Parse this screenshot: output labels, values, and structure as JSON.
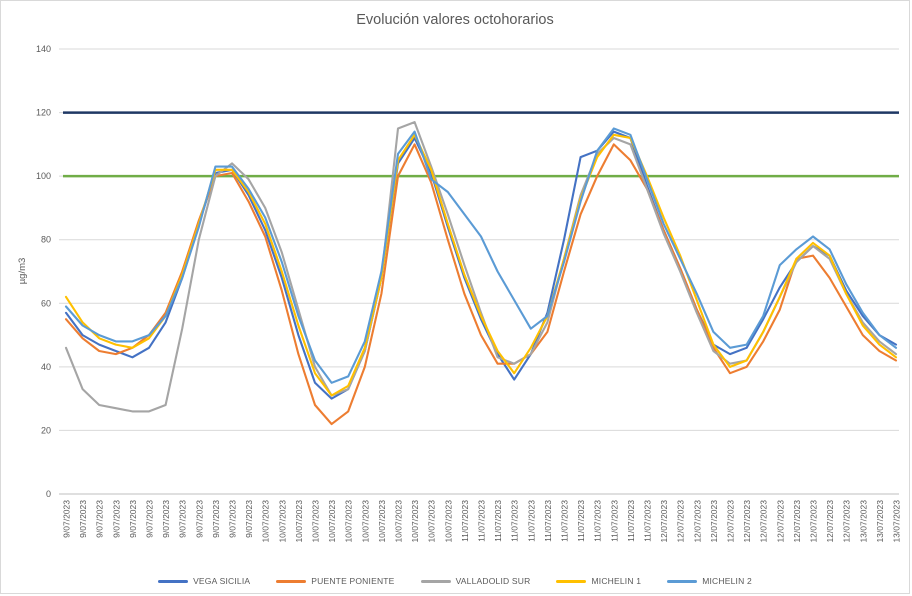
{
  "chart_data": {
    "type": "line",
    "title": "Evolución valores octohorarios",
    "xlabel": "",
    "ylabel": "µg/m3",
    "ylim": [
      0,
      140
    ],
    "yticks": [
      0,
      20,
      40,
      60,
      80,
      100,
      120,
      140
    ],
    "grid": true,
    "legend_position": "bottom",
    "categories": [
      "9/07/2023",
      "9/07/2023",
      "9/07/2023",
      "9/07/2023",
      "9/07/2023",
      "9/07/2023",
      "9/07/2023",
      "9/07/2023",
      "9/07/2023",
      "9/07/2023",
      "9/07/2023",
      "9/07/2023",
      "10/07/2023",
      "10/07/2023",
      "10/07/2023",
      "10/07/2023",
      "10/07/2023",
      "10/07/2023",
      "10/07/2023",
      "10/07/2023",
      "10/07/2023",
      "10/07/2023",
      "10/07/2023",
      "10/07/2023",
      "11/07/2023",
      "11/07/2023",
      "11/07/2023",
      "11/07/2023",
      "11/07/2023",
      "11/07/2023",
      "11/07/2023",
      "11/07/2023",
      "11/07/2023",
      "11/07/2023",
      "11/07/2023",
      "11/07/2023",
      "12/07/2023",
      "12/07/2023",
      "12/07/2023",
      "12/07/2023",
      "12/07/2023",
      "12/07/2023",
      "12/07/2023",
      "12/07/2023",
      "12/07/2023",
      "12/07/2023",
      "12/07/2023",
      "12/07/2023",
      "13/07/2023",
      "13/07/2023",
      "13/07/2023"
    ],
    "series": [
      {
        "name": "VEGA SICILIA",
        "color": "#4472C4",
        "values": [
          57,
          50,
          47,
          45,
          43,
          46,
          54,
          68,
          85,
          101,
          102,
          94,
          83,
          68,
          50,
          35,
          30,
          33,
          45,
          68,
          104,
          112,
          101,
          84,
          68,
          55,
          44,
          36,
          44,
          57,
          80,
          106,
          108,
          114,
          112,
          97,
          83,
          71,
          58,
          47,
          44,
          46,
          55,
          65,
          73,
          78,
          75,
          64,
          56,
          50,
          47
        ]
      },
      {
        "name": "PUENTE PONIENTE",
        "color": "#ED7D31",
        "values": [
          55,
          49,
          45,
          44,
          46,
          50,
          57,
          70,
          86,
          100,
          101,
          92,
          81,
          64,
          44,
          28,
          22,
          26,
          40,
          63,
          100,
          110,
          98,
          80,
          63,
          50,
          41,
          41,
          44,
          51,
          70,
          88,
          100,
          110,
          105,
          96,
          83,
          71,
          58,
          46,
          38,
          40,
          48,
          58,
          74,
          75,
          68,
          59,
          50,
          45,
          42
        ]
      },
      {
        "name": "VALLADOLID SUR",
        "color": "#A5A5A5",
        "values": [
          46,
          33,
          28,
          27,
          26,
          26,
          28,
          52,
          80,
          100,
          104,
          99,
          90,
          76,
          58,
          40,
          31,
          33,
          45,
          68,
          115,
          117,
          103,
          88,
          72,
          57,
          43,
          41,
          44,
          54,
          74,
          94,
          107,
          112,
          110,
          96,
          82,
          70,
          57,
          45,
          41,
          42,
          51,
          62,
          73,
          78,
          74,
          63,
          54,
          48,
          44
        ]
      },
      {
        "name": "MICHELIN 1",
        "color": "#FFC000",
        "values": [
          62,
          54,
          49,
          47,
          46,
          49,
          56,
          69,
          85,
          102,
          102,
          95,
          85,
          70,
          53,
          38,
          31,
          34,
          46,
          68,
          105,
          113,
          102,
          85,
          69,
          56,
          45,
          38,
          46,
          56,
          74,
          93,
          106,
          113,
          112,
          100,
          87,
          75,
          61,
          47,
          40,
          42,
          51,
          62,
          74,
          79,
          75,
          63,
          53,
          47,
          43
        ]
      },
      {
        "name": "MICHELIN 2",
        "color": "#5B9BD5",
        "values": [
          59,
          53,
          50,
          48,
          48,
          50,
          56,
          68,
          84,
          103,
          103,
          96,
          87,
          73,
          56,
          42,
          35,
          37,
          48,
          70,
          107,
          114,
          99,
          95,
          88,
          81,
          70,
          61,
          52,
          56,
          73,
          92,
          108,
          115,
          113,
          99,
          85,
          74,
          63,
          51,
          46,
          47,
          56,
          72,
          77,
          81,
          77,
          66,
          57,
          50,
          46
        ]
      }
    ],
    "reference_lines": [
      {
        "name": "limit-120",
        "value": 120,
        "color": "#1F3864"
      },
      {
        "name": "limit-100",
        "value": 100,
        "color": "#70AD47"
      }
    ]
  }
}
